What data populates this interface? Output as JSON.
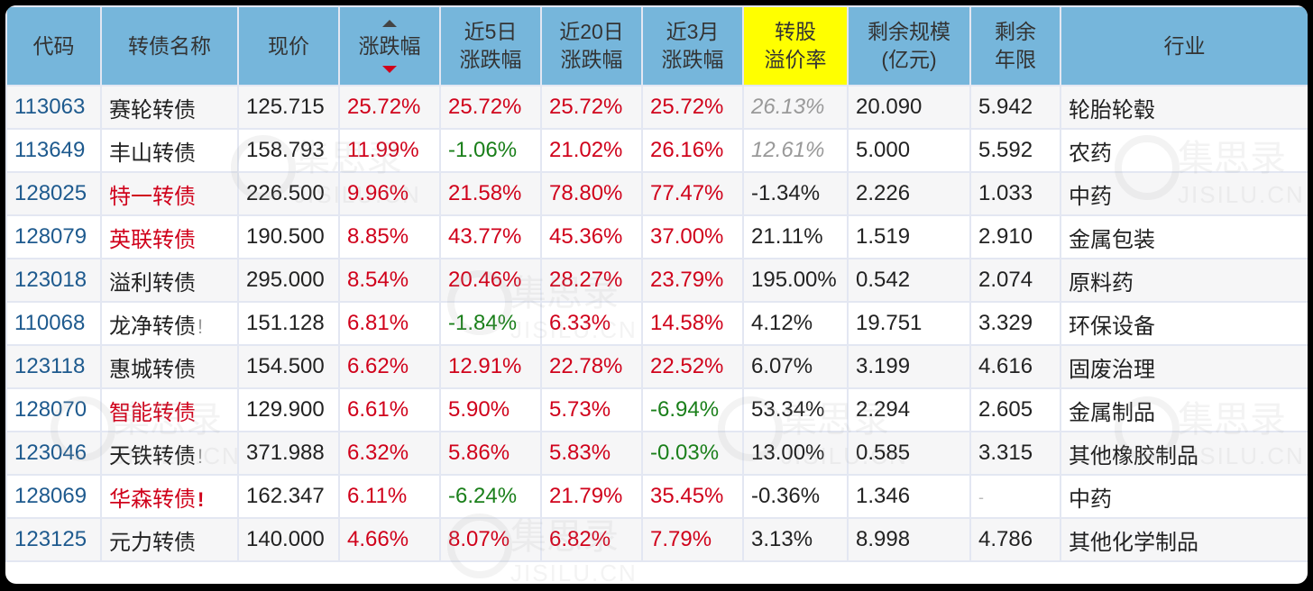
{
  "table": {
    "columns": [
      {
        "key": "code",
        "label_lines": [
          "代码"
        ]
      },
      {
        "key": "name",
        "label_lines": [
          "转债名称"
        ]
      },
      {
        "key": "price",
        "label_lines": [
          "现价"
        ]
      },
      {
        "key": "change",
        "label_lines": [
          "涨跌幅"
        ],
        "sort": "desc"
      },
      {
        "key": "chg5d",
        "label_lines": [
          "近5日",
          "涨跌幅"
        ]
      },
      {
        "key": "chg20d",
        "label_lines": [
          "近20日",
          "涨跌幅"
        ]
      },
      {
        "key": "chg3m",
        "label_lines": [
          "近3月",
          "涨跌幅"
        ]
      },
      {
        "key": "premium",
        "label_lines": [
          "转股",
          "溢价率"
        ],
        "highlight": "#ffff00"
      },
      {
        "key": "size",
        "label_lines": [
          "剩余规模",
          "(亿元)"
        ]
      },
      {
        "key": "years",
        "label_lines": [
          "剩余",
          "年限"
        ]
      },
      {
        "key": "industry",
        "label_lines": [
          "行业"
        ]
      }
    ],
    "rows": [
      {
        "code": "113063",
        "name": "赛轮转债",
        "name_red": false,
        "warn": "",
        "price": "125.715",
        "change": "25.72%",
        "chg5d": "25.72%",
        "chg20d": "25.72%",
        "chg3m": "25.72%",
        "premium": "26.13%",
        "premium_muted": true,
        "size": "20.090",
        "years": "5.942",
        "industry": "轮胎轮毂"
      },
      {
        "code": "113649",
        "name": "丰山转债",
        "name_red": false,
        "warn": "",
        "price": "158.793",
        "change": "11.99%",
        "chg5d": "-1.06%",
        "chg20d": "21.02%",
        "chg3m": "26.16%",
        "premium": "12.61%",
        "premium_muted": true,
        "size": "5.000",
        "years": "5.592",
        "industry": "农药"
      },
      {
        "code": "128025",
        "name": "特一转债",
        "name_red": true,
        "warn": "",
        "price": "226.500",
        "change": "9.96%",
        "chg5d": "21.58%",
        "chg20d": "78.80%",
        "chg3m": "77.47%",
        "premium": "-1.34%",
        "premium_muted": false,
        "size": "2.226",
        "years": "1.033",
        "industry": "中药"
      },
      {
        "code": "128079",
        "name": "英联转债",
        "name_red": true,
        "warn": "",
        "price": "190.500",
        "change": "8.85%",
        "chg5d": "43.77%",
        "chg20d": "45.36%",
        "chg3m": "37.00%",
        "premium": "21.11%",
        "premium_muted": false,
        "size": "1.519",
        "years": "2.910",
        "industry": "金属包装"
      },
      {
        "code": "123018",
        "name": "溢利转债",
        "name_red": false,
        "warn": "",
        "price": "295.000",
        "change": "8.54%",
        "chg5d": "20.46%",
        "chg20d": "28.27%",
        "chg3m": "23.79%",
        "premium": "195.00%",
        "premium_muted": false,
        "size": "0.542",
        "years": "2.074",
        "industry": "原料药"
      },
      {
        "code": "110068",
        "name": "龙净转债",
        "name_red": false,
        "warn": "!",
        "warn_red": false,
        "price": "151.128",
        "change": "6.81%",
        "chg5d": "-1.84%",
        "chg20d": "6.33%",
        "chg3m": "14.58%",
        "premium": "4.12%",
        "premium_muted": false,
        "size": "19.751",
        "years": "3.329",
        "industry": "环保设备"
      },
      {
        "code": "123118",
        "name": "惠城转债",
        "name_red": false,
        "warn": "",
        "price": "154.500",
        "change": "6.62%",
        "chg5d": "12.91%",
        "chg20d": "22.78%",
        "chg3m": "22.52%",
        "premium": "6.07%",
        "premium_muted": false,
        "size": "3.199",
        "years": "4.616",
        "industry": "固废治理"
      },
      {
        "code": "128070",
        "name": "智能转债",
        "name_red": true,
        "warn": "",
        "price": "129.900",
        "change": "6.61%",
        "chg5d": "5.90%",
        "chg20d": "5.73%",
        "chg3m": "-6.94%",
        "premium": "53.34%",
        "premium_muted": false,
        "size": "2.294",
        "years": "2.605",
        "industry": "金属制品"
      },
      {
        "code": "123046",
        "name": "天铁转债",
        "name_red": false,
        "warn": "!",
        "warn_red": false,
        "price": "371.988",
        "change": "6.32%",
        "chg5d": "5.86%",
        "chg20d": "5.83%",
        "chg3m": "-0.03%",
        "premium": "13.00%",
        "premium_muted": false,
        "size": "0.585",
        "years": "3.315",
        "industry": "其他橡胶制品"
      },
      {
        "code": "128069",
        "name": "华森转债",
        "name_red": true,
        "warn": "!",
        "warn_red": true,
        "price": "162.347",
        "change": "6.11%",
        "chg5d": "-6.24%",
        "chg20d": "21.79%",
        "chg3m": "35.45%",
        "premium": "-0.36%",
        "premium_muted": false,
        "size": "1.346",
        "years": "-",
        "industry": "中药"
      },
      {
        "code": "123125",
        "name": "元力转债",
        "name_red": false,
        "warn": "",
        "price": "140.000",
        "change": "4.66%",
        "chg5d": "8.07%",
        "chg20d": "6.82%",
        "chg3m": "7.79%",
        "premium": "3.13%",
        "premium_muted": false,
        "size": "8.998",
        "years": "4.786",
        "industry": "其他化学制品"
      }
    ]
  },
  "colors": {
    "header_bg": "#76b6db",
    "header_highlight": "#ffff00",
    "up": "#d0021b",
    "down": "#1a7f1a",
    "code": "#1e5a8e",
    "muted": "#999999"
  },
  "watermark": {
    "text": "集思录",
    "sub": "JISILU.CN"
  },
  "icons": {
    "sort_up": "triangle-up",
    "sort_down": "triangle-down",
    "warning": "exclamation"
  }
}
